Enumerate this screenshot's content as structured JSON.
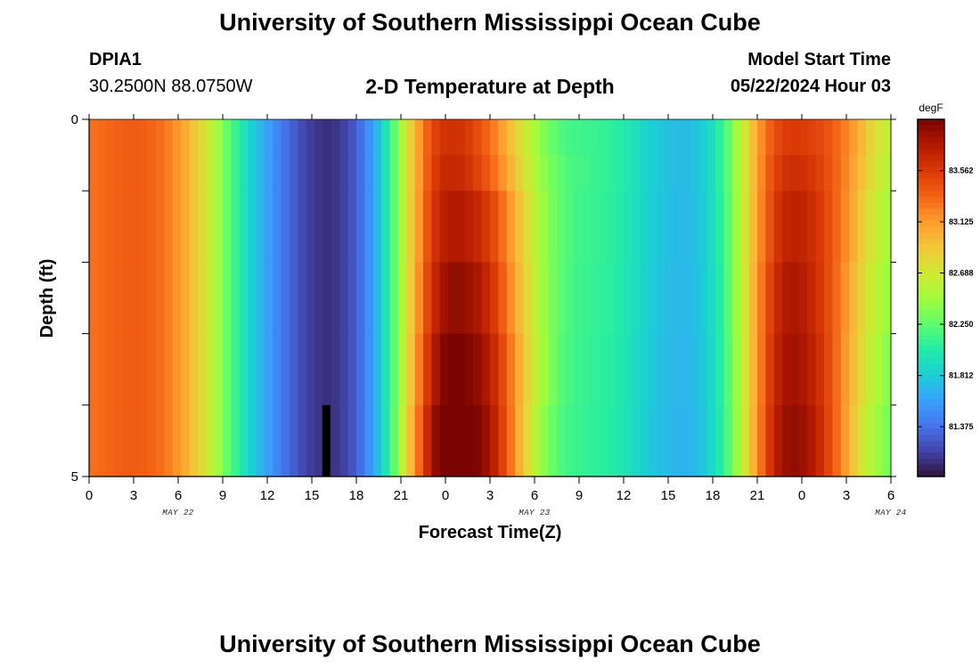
{
  "header": {
    "title": "University of Southern Mississippi Ocean Cube",
    "station_id": "DPIA1",
    "coordinates": "30.2500N  88.0750W",
    "plot_title": "2-D Temperature at Depth",
    "model_start_label": "Model Start Time",
    "model_start_value": "05/22/2024 Hour 03"
  },
  "footer": {
    "title": "University of Southern Mississippi Ocean Cube"
  },
  "chart_data": {
    "type": "heatmap",
    "title": "2-D Temperature at Depth",
    "xlabel": "Forecast Time(Z)",
    "ylabel": "Depth (ft)",
    "x_tick_labels": [
      "0",
      "3",
      "6",
      "9",
      "12",
      "15",
      "18",
      "21",
      "0",
      "3",
      "6",
      "9",
      "12",
      "15",
      "18",
      "21",
      "0",
      "3",
      "6"
    ],
    "x_date_labels": [
      {
        "label": "MAY 22",
        "hour": 6
      },
      {
        "label": "MAY 23",
        "hour": 30
      },
      {
        "label": "MAY 24",
        "hour": 54
      }
    ],
    "x_range_hours": [
      0,
      54
    ],
    "y_tick_labels": [
      "0",
      "5"
    ],
    "y_range": [
      0,
      5
    ],
    "colorbar": {
      "unit": "degF",
      "ticks": [
        "83.562",
        "83.125",
        "82.688",
        "82.250",
        "81.812",
        "81.375"
      ],
      "range": [
        80.95,
        84.0
      ],
      "colors": [
        "#30123b",
        "#4145ab",
        "#4675ed",
        "#39a2fc",
        "#1bcfd4",
        "#24eca6",
        "#61fc6c",
        "#a4fc3b",
        "#d1e834",
        "#f3c63a",
        "#fe9b2d",
        "#f36315",
        "#d93806",
        "#b11901",
        "#7a0402"
      ]
    },
    "depth_rows": [
      0,
      0.5,
      1.5,
      2.5,
      3.5,
      4.5
    ],
    "series": [
      {
        "depth": 0,
        "values": [
          83.3,
          83.32,
          83.34,
          83.36,
          83.38,
          83.38,
          83.37,
          83.34,
          83.3,
          83.24,
          83.15,
          83.04,
          82.92,
          82.78,
          82.62,
          82.45,
          82.28,
          82.12,
          81.96,
          81.82,
          81.7,
          81.58,
          81.47,
          81.37,
          81.28,
          81.2,
          81.14,
          81.1,
          81.08,
          81.1,
          81.15,
          81.24,
          81.36,
          81.52,
          81.72,
          81.96,
          82.24,
          82.54,
          82.84,
          83.12,
          83.36,
          83.52,
          83.6,
          83.62,
          83.6,
          83.54,
          83.46,
          83.36,
          83.24,
          83.1,
          82.94,
          82.78,
          82.62,
          82.48,
          82.36,
          82.27,
          82.2,
          82.16,
          82.14,
          82.13,
          82.12,
          82.1,
          82.08,
          82.04,
          81.99,
          81.93,
          81.87,
          81.82,
          81.78,
          81.75,
          81.73,
          81.73,
          81.76,
          81.82,
          81.92,
          82.06,
          82.24,
          82.46,
          82.7,
          82.95,
          83.18,
          83.36,
          83.48,
          83.54,
          83.56,
          83.55,
          83.52,
          83.48,
          83.42,
          83.34,
          83.24,
          83.12,
          82.98,
          82.84,
          82.72,
          82.62
        ]
      },
      {
        "depth": 0.5,
        "values": [
          83.3,
          83.32,
          83.34,
          83.36,
          83.38,
          83.38,
          83.37,
          83.34,
          83.3,
          83.24,
          83.15,
          83.04,
          82.92,
          82.78,
          82.62,
          82.45,
          82.28,
          82.12,
          81.96,
          81.82,
          81.7,
          81.58,
          81.47,
          81.37,
          81.28,
          81.2,
          81.14,
          81.1,
          81.08,
          81.1,
          81.15,
          81.24,
          81.36,
          81.52,
          81.72,
          81.96,
          82.24,
          82.54,
          82.84,
          83.12,
          83.38,
          83.56,
          83.66,
          83.68,
          83.66,
          83.6,
          83.52,
          83.42,
          83.3,
          83.16,
          83.0,
          82.84,
          82.68,
          82.52,
          82.4,
          82.31,
          82.24,
          82.19,
          82.16,
          82.14,
          82.12,
          82.1,
          82.08,
          82.04,
          81.99,
          81.93,
          81.87,
          81.82,
          81.78,
          81.75,
          81.73,
          81.73,
          81.76,
          81.82,
          81.92,
          82.06,
          82.24,
          82.46,
          82.7,
          82.95,
          83.2,
          83.4,
          83.54,
          83.62,
          83.64,
          83.62,
          83.58,
          83.52,
          83.44,
          83.34,
          83.22,
          83.08,
          82.94,
          82.8,
          82.68,
          82.58
        ]
      },
      {
        "depth": 1.5,
        "values": [
          83.3,
          83.32,
          83.34,
          83.36,
          83.38,
          83.38,
          83.37,
          83.34,
          83.3,
          83.24,
          83.15,
          83.04,
          82.92,
          82.78,
          82.62,
          82.45,
          82.28,
          82.12,
          81.96,
          81.82,
          81.7,
          81.58,
          81.47,
          81.37,
          81.28,
          81.2,
          81.14,
          81.1,
          81.08,
          81.1,
          81.15,
          81.24,
          81.36,
          81.52,
          81.72,
          81.96,
          82.24,
          82.54,
          82.84,
          83.14,
          83.42,
          83.62,
          83.74,
          83.78,
          83.78,
          83.74,
          83.68,
          83.58,
          83.46,
          83.3,
          83.12,
          82.94,
          82.76,
          82.58,
          82.44,
          82.33,
          82.25,
          82.19,
          82.15,
          82.13,
          82.11,
          82.09,
          82.07,
          82.03,
          81.98,
          81.92,
          81.86,
          81.81,
          81.77,
          81.74,
          81.72,
          81.72,
          81.75,
          81.81,
          81.91,
          82.05,
          82.23,
          82.45,
          82.7,
          82.96,
          83.22,
          83.44,
          83.6,
          83.7,
          83.72,
          83.7,
          83.64,
          83.56,
          83.46,
          83.34,
          83.2,
          83.04,
          82.88,
          82.74,
          82.62,
          82.52
        ]
      },
      {
        "depth": 2.5,
        "values": [
          83.3,
          83.32,
          83.34,
          83.36,
          83.38,
          83.38,
          83.37,
          83.34,
          83.3,
          83.24,
          83.15,
          83.04,
          82.92,
          82.78,
          82.62,
          82.45,
          82.28,
          82.12,
          81.96,
          81.82,
          81.7,
          81.58,
          81.47,
          81.37,
          81.28,
          81.2,
          81.14,
          81.1,
          81.08,
          81.1,
          81.15,
          81.24,
          81.36,
          81.52,
          81.72,
          81.96,
          82.24,
          82.54,
          82.86,
          83.18,
          83.48,
          83.7,
          83.84,
          83.9,
          83.9,
          83.86,
          83.8,
          83.7,
          83.56,
          83.38,
          83.18,
          82.98,
          82.78,
          82.6,
          82.45,
          82.33,
          82.24,
          82.18,
          82.14,
          82.12,
          82.1,
          82.08,
          82.06,
          82.02,
          81.97,
          81.91,
          81.85,
          81.8,
          81.76,
          81.73,
          81.71,
          81.71,
          81.74,
          81.8,
          81.9,
          82.04,
          82.22,
          82.44,
          82.7,
          82.98,
          83.26,
          83.5,
          83.68,
          83.78,
          83.8,
          83.76,
          83.68,
          83.58,
          83.46,
          83.32,
          83.16,
          82.98,
          82.82,
          82.68,
          82.56,
          82.46
        ]
      },
      {
        "depth": 3.5,
        "values": [
          83.3,
          83.32,
          83.34,
          83.36,
          83.38,
          83.38,
          83.37,
          83.34,
          83.3,
          83.24,
          83.15,
          83.04,
          82.92,
          82.78,
          82.62,
          82.45,
          82.28,
          82.12,
          81.96,
          81.82,
          81.7,
          81.58,
          81.47,
          81.37,
          81.28,
          81.2,
          81.14,
          81.1,
          81.08,
          81.1,
          81.15,
          81.24,
          81.36,
          81.52,
          81.72,
          81.96,
          82.24,
          82.56,
          82.9,
          83.24,
          83.56,
          83.8,
          83.96,
          84.0,
          84.0,
          83.96,
          83.9,
          83.8,
          83.66,
          83.48,
          83.26,
          83.04,
          82.82,
          82.62,
          82.46,
          82.33,
          82.23,
          82.17,
          82.13,
          82.11,
          82.09,
          82.07,
          82.05,
          82.01,
          81.96,
          81.9,
          81.84,
          81.79,
          81.75,
          81.72,
          81.7,
          81.7,
          81.73,
          81.79,
          81.89,
          82.03,
          82.21,
          82.43,
          82.7,
          82.98,
          83.28,
          83.54,
          83.72,
          83.82,
          83.84,
          83.8,
          83.72,
          83.62,
          83.48,
          83.32,
          83.14,
          82.96,
          82.78,
          82.62,
          82.5,
          82.4
        ]
      },
      {
        "depth": 4.5,
        "values": [
          83.3,
          83.32,
          83.34,
          83.36,
          83.38,
          83.38,
          83.37,
          83.34,
          83.3,
          83.24,
          83.15,
          83.04,
          82.92,
          82.78,
          82.62,
          82.45,
          82.28,
          82.12,
          81.96,
          81.82,
          81.7,
          81.58,
          81.47,
          81.37,
          81.28,
          81.2,
          81.14,
          81.1,
          81.08,
          81.1,
          81.15,
          81.24,
          81.36,
          81.52,
          81.72,
          81.96,
          82.26,
          82.6,
          82.96,
          83.32,
          83.66,
          83.92,
          84.0,
          84.0,
          84.0,
          84.0,
          83.98,
          83.88,
          83.72,
          83.52,
          83.28,
          83.02,
          82.78,
          82.56,
          82.4,
          82.28,
          82.2,
          82.15,
          82.12,
          82.1,
          82.08,
          82.06,
          82.04,
          82.0,
          81.95,
          81.89,
          81.83,
          81.78,
          81.74,
          81.71,
          81.69,
          81.69,
          81.72,
          81.78,
          81.88,
          82.02,
          82.2,
          82.42,
          82.7,
          83.0,
          83.3,
          83.58,
          83.78,
          83.88,
          83.9,
          83.86,
          83.78,
          83.66,
          83.5,
          83.32,
          83.12,
          82.92,
          82.72,
          82.56,
          82.44,
          82.34
        ]
      }
    ],
    "marker": {
      "hour": 16,
      "depth_from": 4.0,
      "depth_to": 5
    }
  }
}
